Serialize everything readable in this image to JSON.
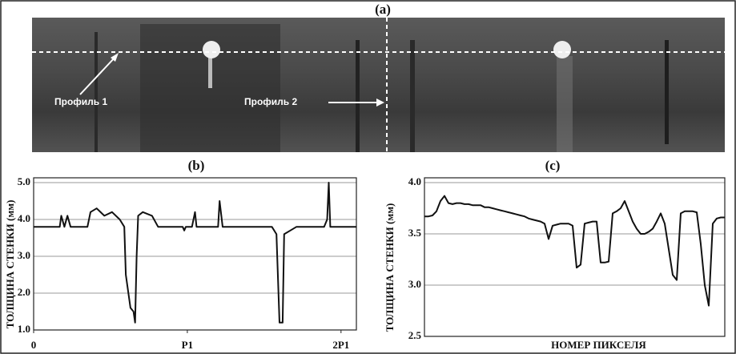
{
  "image_panel": {
    "title": "(a)",
    "labels": [
      "Профиль 1",
      "Профиль 2"
    ]
  },
  "chart_data": [
    {
      "type": "line",
      "title": "(b)",
      "ylabel": "ТОЛЩИНА СТЕНКИ (мм)",
      "xlim": [
        0,
        2.1
      ],
      "xticks": [
        0,
        {
          "value": 1,
          "label": "P1"
        },
        {
          "value": 2,
          "label": "2P1"
        }
      ],
      "ylim": [
        1,
        5
      ],
      "yticks": [
        {
          "value": 1,
          "label": "1.0"
        },
        {
          "value": 2,
          "label": "2.0"
        },
        {
          "value": 3,
          "label": "3.0"
        },
        {
          "value": 4,
          "label": "4.0"
        },
        {
          "value": 5,
          "label": "5.0"
        }
      ],
      "grid": true,
      "series": [
        {
          "color": "#111111",
          "x": [
            0,
            0.17,
            0.18,
            0.2,
            0.22,
            0.24,
            0.35,
            0.37,
            0.41,
            0.46,
            0.51,
            0.56,
            0.59,
            0.6,
            0.63,
            0.65,
            0.66,
            0.67,
            0.68,
            0.71,
            0.77,
            0.81,
            0.97,
            0.98,
            0.99,
            1.03,
            1.05,
            1.06,
            1.2,
            1.21,
            1.23,
            1.55,
            1.58,
            1.6,
            1.62,
            1.63,
            1.67,
            1.71,
            1.74,
            1.89,
            1.91,
            1.92,
            1.93,
            2.1
          ],
          "values": [
            3.8,
            3.8,
            4.1,
            3.8,
            4.1,
            3.8,
            3.8,
            4.2,
            4.3,
            4.1,
            4.2,
            4.0,
            3.8,
            2.5,
            1.6,
            1.5,
            1.2,
            3.0,
            4.1,
            4.2,
            4.1,
            3.8,
            3.8,
            3.7,
            3.8,
            3.8,
            4.2,
            3.8,
            3.8,
            4.5,
            3.8,
            3.8,
            3.6,
            1.2,
            1.2,
            3.6,
            3.7,
            3.8,
            3.8,
            3.8,
            4.0,
            5.0,
            3.8,
            3.8
          ]
        }
      ]
    },
    {
      "type": "line",
      "title": "(c)",
      "ylabel": "ТОЛЩИНА СТЕНКИ (мм)",
      "xlabel": "НОМЕР ПИКСЕЛЯ",
      "ylim": [
        2.5,
        4.0
      ],
      "yticks": [
        2.5,
        {
          "value": 3,
          "label": "3.0"
        },
        3.5,
        {
          "value": 4,
          "label": "4.0"
        }
      ],
      "grid": true,
      "series": [
        {
          "color": "#111111",
          "values": [
            3.67,
            3.67,
            3.68,
            3.72,
            3.82,
            3.87,
            3.8,
            3.79,
            3.8,
            3.8,
            3.79,
            3.79,
            3.78,
            3.78,
            3.78,
            3.76,
            3.76,
            3.75,
            3.74,
            3.73,
            3.72,
            3.71,
            3.7,
            3.69,
            3.68,
            3.67,
            3.65,
            3.64,
            3.63,
            3.62,
            3.6,
            3.45,
            3.58,
            3.59,
            3.6,
            3.6,
            3.6,
            3.58,
            3.17,
            3.2,
            3.6,
            3.61,
            3.62,
            3.62,
            3.22,
            3.22,
            3.23,
            3.7,
            3.72,
            3.75,
            3.82,
            3.72,
            3.62,
            3.55,
            3.5,
            3.5,
            3.52,
            3.55,
            3.62,
            3.7,
            3.6,
            3.35,
            3.1,
            3.05,
            3.7,
            3.72,
            3.72,
            3.72,
            3.71,
            3.4,
            3.0,
            2.8,
            3.6,
            3.65,
            3.66,
            3.66
          ]
        }
      ]
    }
  ]
}
